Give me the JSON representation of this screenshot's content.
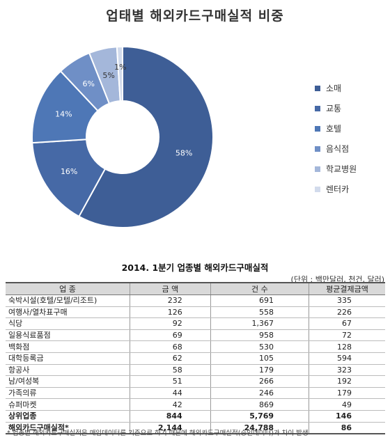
{
  "chart_data": {
    "type": "pie",
    "title": "업태별 해외카드구매실적 비중",
    "categories": [
      "소매",
      "교통",
      "호텔",
      "음식점",
      "학교병원",
      "렌터카"
    ],
    "values": [
      58,
      16,
      14,
      6,
      5,
      1
    ],
    "labels": [
      "58%",
      "16%",
      "14%",
      "6%",
      "5%",
      "1%"
    ],
    "colors": [
      "#3e5e96",
      "#4669a6",
      "#4e77b6",
      "#6f8fc6",
      "#a4b7da",
      "#d2dbec"
    ],
    "legend_position": "right",
    "donut": true
  },
  "table": {
    "title": "2014. 1분기 업종별 해외카드구매실적",
    "unit": "(단위 : 백만달러, 천건, 달러)",
    "headers": [
      "업 종",
      "금 액",
      "건 수",
      "평균결제금액"
    ],
    "rows": [
      [
        "숙박시설(호텔/모텔/리조트)",
        "232",
        "691",
        "335"
      ],
      [
        "여행사/열차표구매",
        "126",
        "558",
        "226"
      ],
      [
        "식당",
        "92",
        "1,367",
        "67"
      ],
      [
        "일용식료품점",
        "69",
        "958",
        "72"
      ],
      [
        "백화점",
        "68",
        "530",
        "128"
      ],
      [
        "대학등록금",
        "62",
        "105",
        "594"
      ],
      [
        "항공사",
        "58",
        "179",
        "323"
      ],
      [
        "남/여성복",
        "51",
        "266",
        "192"
      ],
      [
        "가족의류",
        "44",
        "246",
        "179"
      ],
      [
        "슈퍼마켓",
        "42",
        "869",
        "49"
      ]
    ],
    "subtotal": [
      "상위업종",
      "844",
      "5,769",
      "146"
    ],
    "total": [
      "해외카드구매실적*",
      "2,144",
      "24,788",
      "86"
    ],
    "footnote": "* 업종별 해외카드구매실적은 매입데이터를 기준으로 하기 때문에 해외카드구매실적(승인데이터)과 차이 발생"
  }
}
